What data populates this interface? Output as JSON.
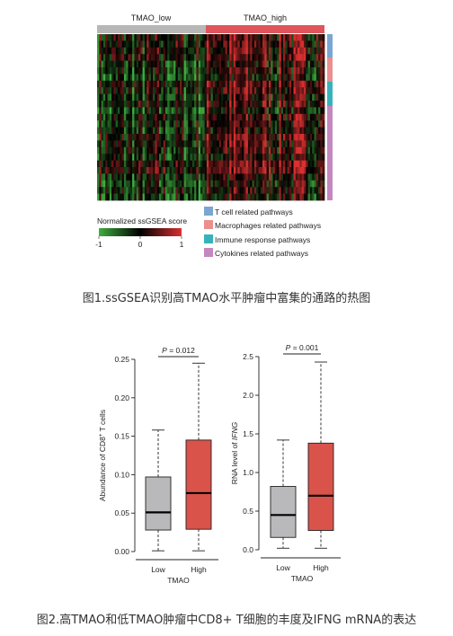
{
  "figure1": {
    "caption": "图1.ssGSEA识别高TMAO水平肿瘤中富集的通路的热图",
    "colorbar": {
      "title": "Normalized ssGSEA score",
      "ticks": [
        "-1",
        "0",
        "1"
      ],
      "colors": [
        "#3fae3f",
        "#000000",
        "#d93030"
      ]
    },
    "chart_data": {
      "type": "heatmap",
      "groups": [
        {
          "name": "TMAO_low",
          "color": "#b7b7b7"
        },
        {
          "name": "TMAO_high",
          "color": "#e0555c"
        }
      ],
      "value_range": [
        -1,
        1
      ],
      "pathway_categories": [
        {
          "name": "T cell related pathways",
          "color": "#7aa6d1"
        },
        {
          "name": "Macrophages related pathways",
          "color": "#ec8e8e"
        },
        {
          "name": "Immune response pathways",
          "color": "#36b3ba"
        },
        {
          "name": "Cytokines related pathways",
          "color": "#c487bf"
        }
      ]
    }
  },
  "figure2": {
    "caption": "图2.高TMAO和低TMAO肿瘤中CD8+ T细胞的丰度及IFNG mRNA的表达",
    "chart_data": [
      {
        "type": "box",
        "ylabel_pre": "Abundance of CD8",
        "ylabel_sup": "+",
        "ylabel_post": " T cells",
        "yticks": [
          "0.00",
          "0.05",
          "0.10",
          "0.15",
          "0.20",
          "0.25"
        ],
        "ylim": [
          0,
          0.25
        ],
        "xlabel": "TMAO",
        "p_label": "P",
        "p_value": "= 0.012",
        "boxes": [
          {
            "label": "Low",
            "color": "#b9b9bb",
            "whisker_low": 0.001,
            "q1": 0.028,
            "median": 0.051,
            "q3": 0.097,
            "whisker_high": 0.158
          },
          {
            "label": "High",
            "color": "#d9534a",
            "whisker_low": 0.001,
            "q1": 0.029,
            "median": 0.076,
            "q3": 0.145,
            "whisker_high": 0.245
          }
        ]
      },
      {
        "type": "box",
        "ylabel_pre": "RNA level of ",
        "ylabel_italic": "IFNG",
        "yticks": [
          "0.0",
          "0.5",
          "1.0",
          "1.5",
          "2.0",
          "2.5"
        ],
        "ylim": [
          0,
          2.5
        ],
        "xlabel": "TMAO",
        "p_label": "P",
        "p_value": "= 0.001",
        "boxes": [
          {
            "label": "Low",
            "color": "#b9b9bb",
            "whisker_low": 0.02,
            "q1": 0.16,
            "median": 0.45,
            "q3": 0.82,
            "whisker_high": 1.42
          },
          {
            "label": "High",
            "color": "#d9534a",
            "whisker_low": 0.02,
            "q1": 0.25,
            "median": 0.7,
            "q3": 1.38,
            "whisker_high": 2.43
          }
        ]
      }
    ]
  }
}
